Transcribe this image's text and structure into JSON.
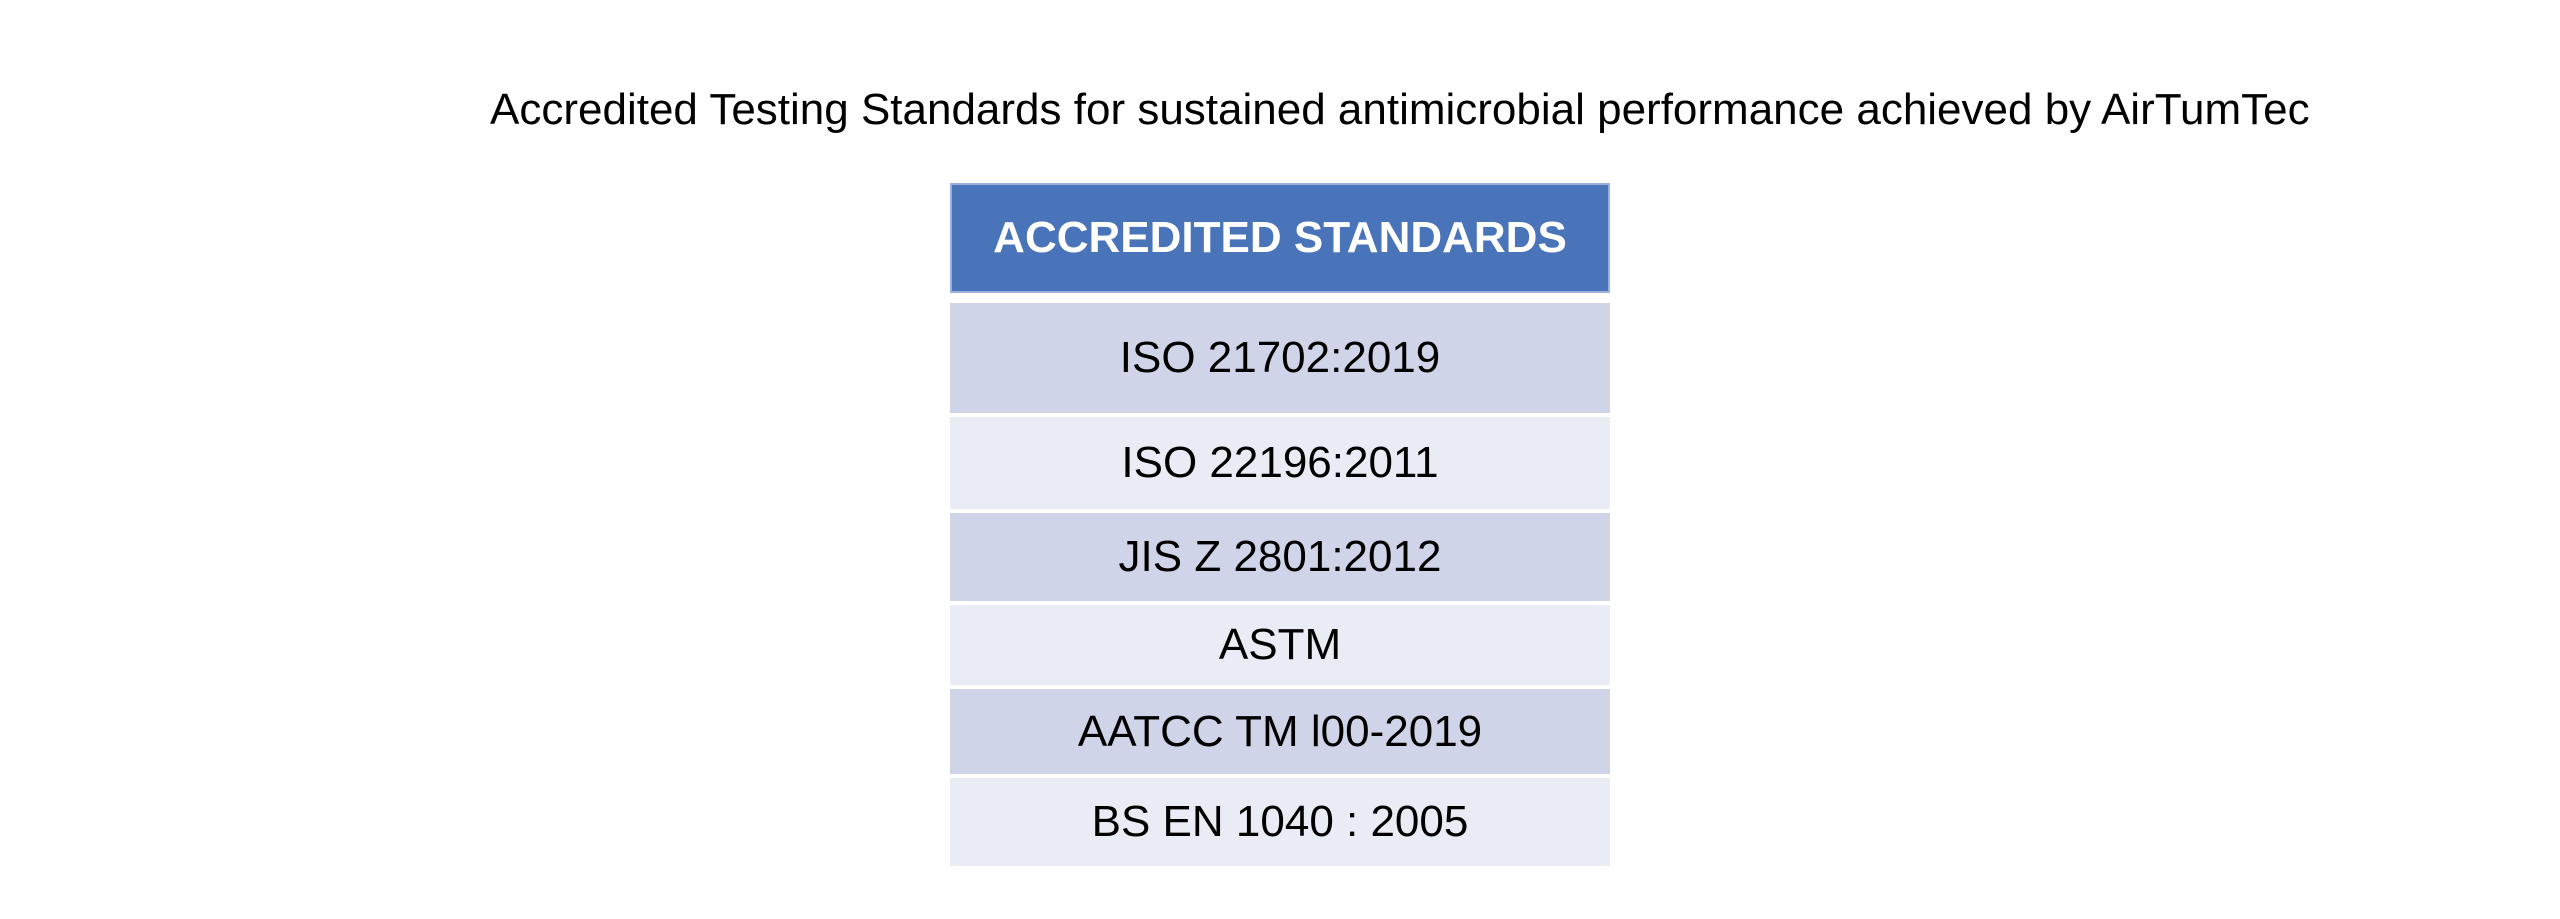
{
  "title": "Accredited Testing Standards for sustained antimicrobial performance achieved by AirTumTec",
  "table": {
    "header": "ACCREDITED STANDARDS",
    "rows": [
      "ISO 21702:2019",
      "ISO 22196:2011",
      "JIS Z 2801:2012",
      "ASTM",
      "AATCC TM l00-2019",
      "BS EN 1040 : 2005"
    ]
  },
  "colors": {
    "header-bg": "#4a74b9",
    "header-border": "#9cb1dd",
    "band-dark": "#cfd4e9",
    "band-light": "#e9ebf5",
    "header-text": "#ffffff",
    "row-text": "#000000"
  }
}
